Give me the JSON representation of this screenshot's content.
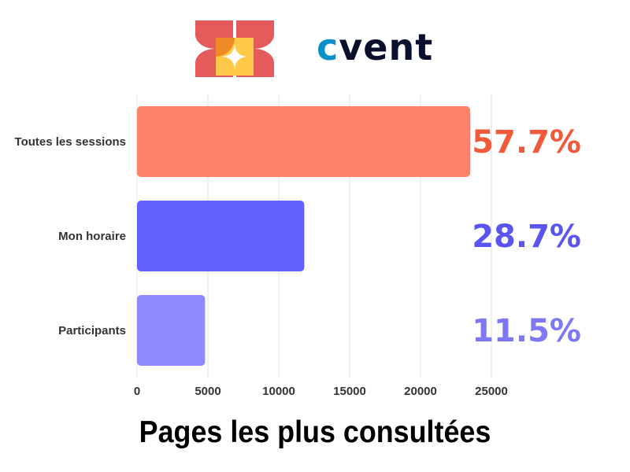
{
  "brand": {
    "logo_icon": "geometric-flower-logo",
    "wordmark_prefix": "c",
    "wordmark_rest": "vent"
  },
  "chart_data": {
    "type": "bar",
    "orientation": "horizontal",
    "title": "Pages les plus consultées",
    "categories": [
      "Toutes les sessions",
      "Mon horaire",
      "Participants"
    ],
    "values": [
      23500,
      11800,
      4800
    ],
    "percent_labels": [
      "57.7%",
      "28.7%",
      "11.5%"
    ],
    "colors": [
      "#FF806B",
      "#6360FF",
      "#8F88FF"
    ],
    "label_colors": [
      "#F05A3A",
      "#5B55F0",
      "#7F78F5"
    ],
    "xlim": [
      0,
      25000
    ],
    "xticks": [
      0,
      5000,
      10000,
      15000,
      20000,
      25000
    ],
    "grid": true
  }
}
